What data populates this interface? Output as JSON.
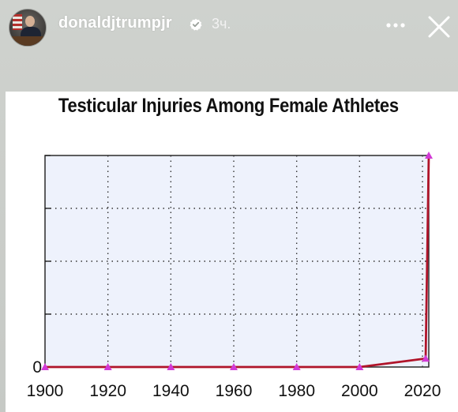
{
  "story": {
    "username": "donaldjtrumpjr",
    "timestamp": "3ч.",
    "icons": {
      "avatar": "profile-photo",
      "verified": "verified-badge-icon",
      "more": "more-options-icon",
      "close": "close-icon"
    }
  },
  "chart_data": {
    "type": "line",
    "title": "Testicular Injuries Among Female Athletes",
    "xlabel": "",
    "ylabel": "",
    "x_ticks": [
      1900,
      1920,
      1940,
      1960,
      1980,
      2000,
      2020
    ],
    "y_tick_labels": [
      "0"
    ],
    "xlim": [
      1900,
      2022
    ],
    "ylim": [
      0,
      1
    ],
    "grid": true,
    "series": [
      {
        "x": [
          1900,
          1920,
          1940,
          1960,
          1980,
          2000,
          2021,
          2022
        ],
        "y": [
          0,
          0,
          0,
          0,
          0,
          0,
          0.04,
          1.0
        ],
        "color": "#b0152a",
        "marker_color": "#d23ad6"
      }
    ],
    "colors": {
      "plot_background": "#eef2fc",
      "line": "#b0152a",
      "marker": "#d23ad6"
    }
  }
}
